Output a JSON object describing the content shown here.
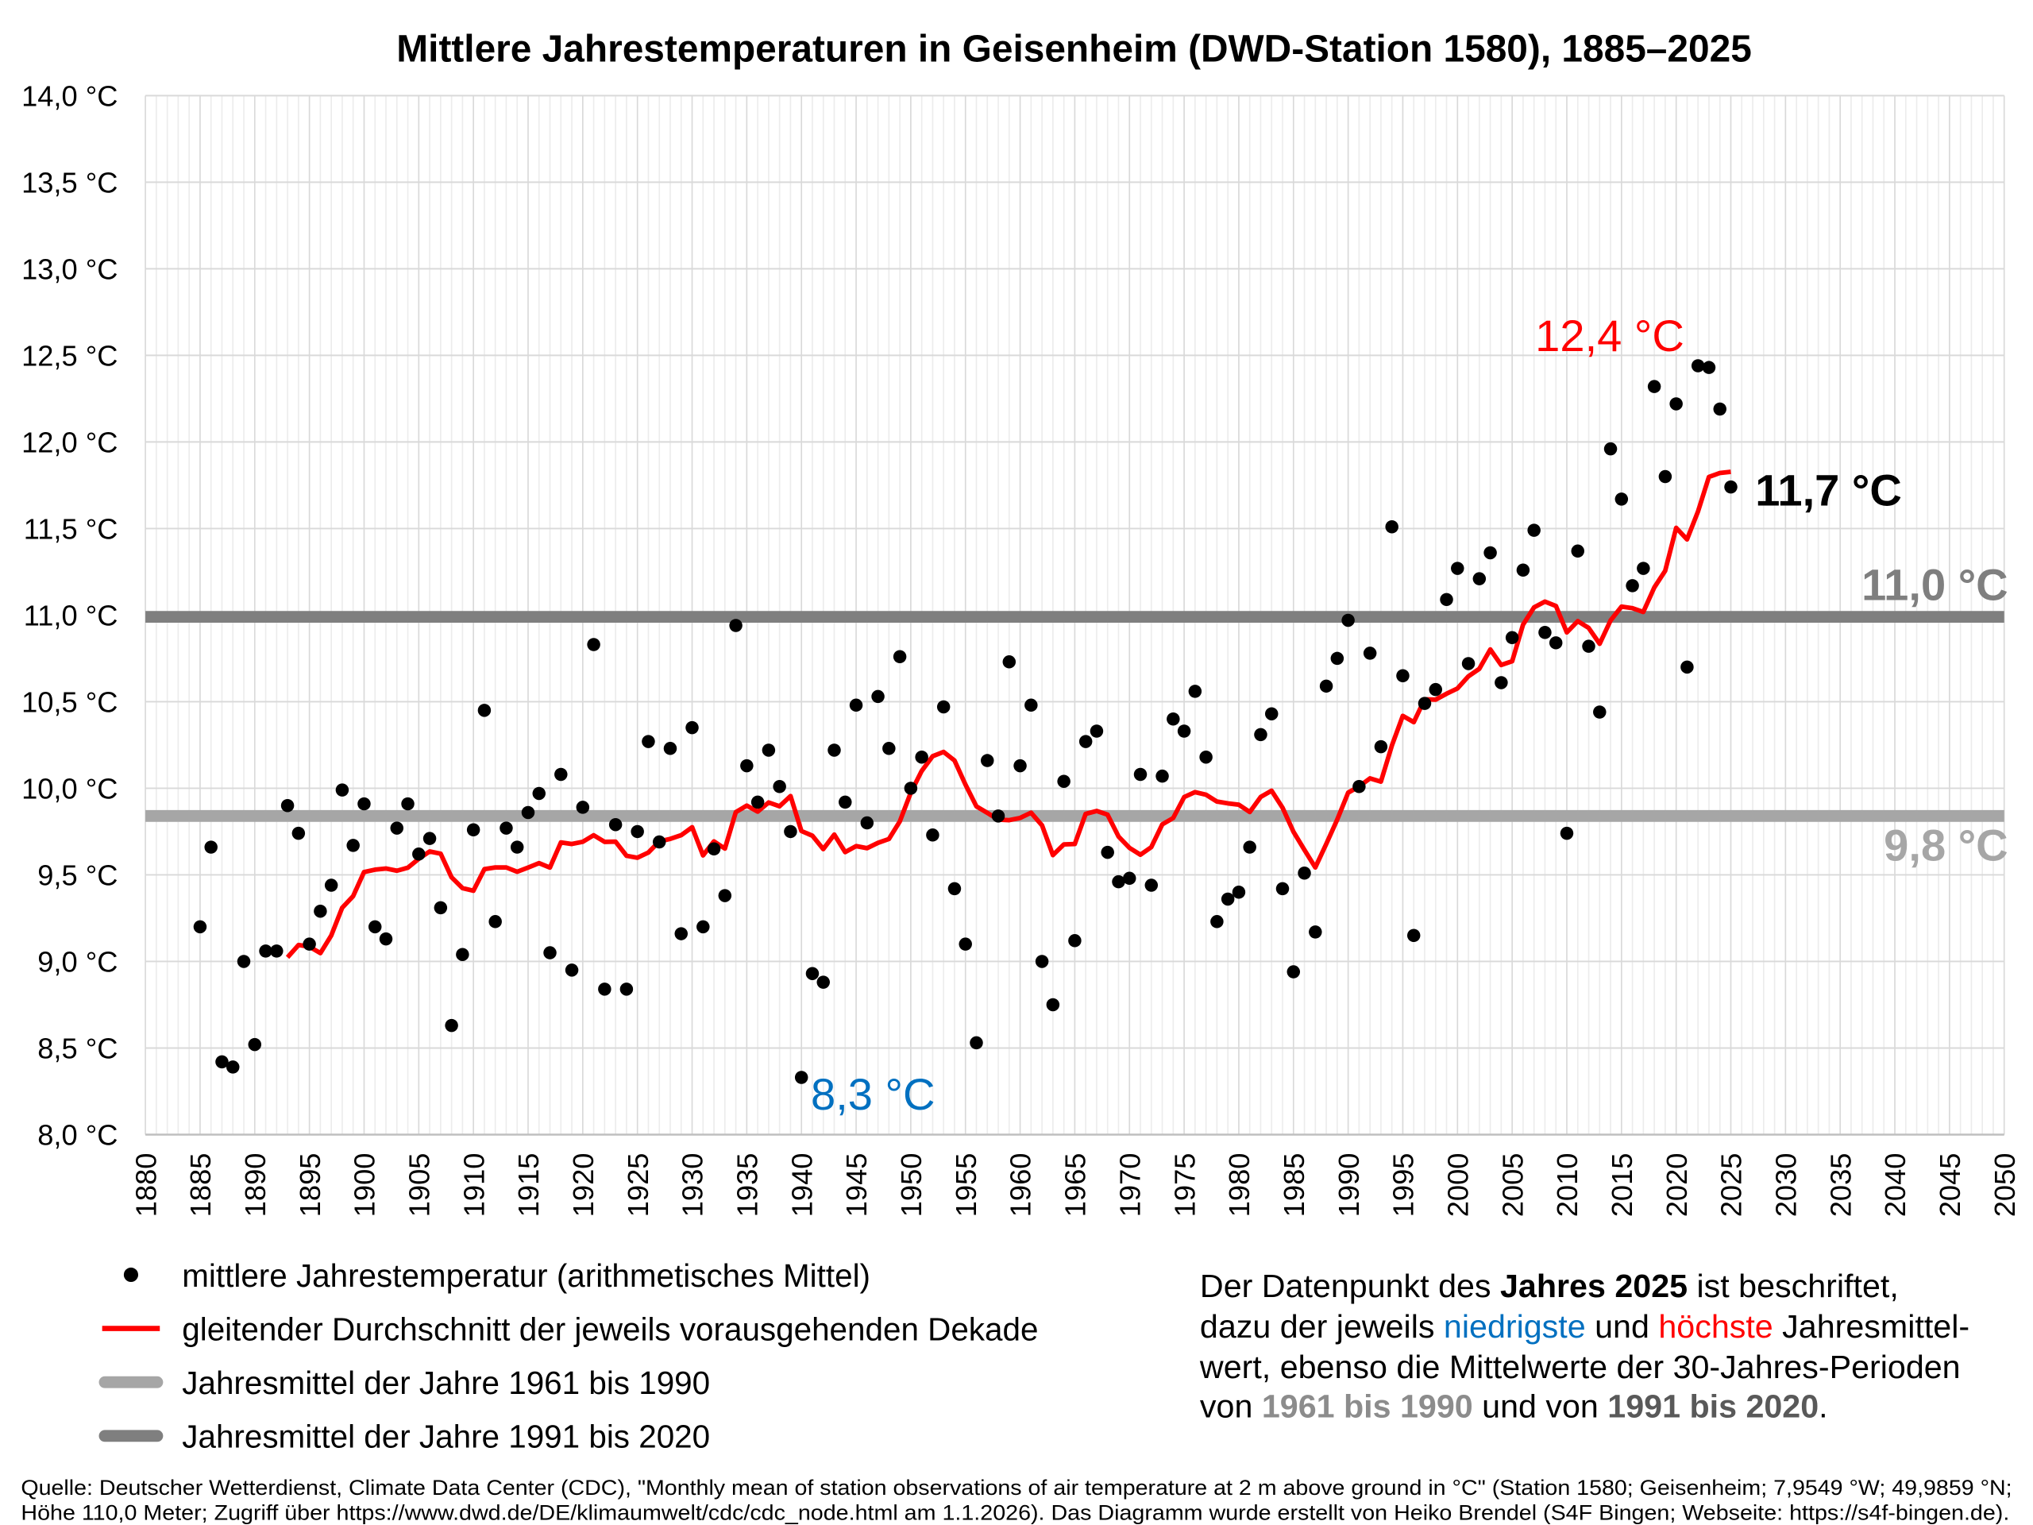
{
  "chart_data": {
    "type": "scatter",
    "title": "Mittlere Jahrestemperaturen in Geisenheim (DWD-Station 1580), 1885–2025",
    "xlim": [
      1880,
      2050
    ],
    "ylim": [
      8.0,
      14.0
    ],
    "x_ticks": [
      "1880",
      "1885",
      "1890",
      "1895",
      "1900",
      "1905",
      "1910",
      "1915",
      "1920",
      "1925",
      "1930",
      "1935",
      "1940",
      "1945",
      "1950",
      "1955",
      "1960",
      "1965",
      "1970",
      "1975",
      "1980",
      "1985",
      "1990",
      "1995",
      "2000",
      "2005",
      "2010",
      "2015",
      "2020",
      "2025",
      "2030",
      "2035",
      "2040",
      "2045",
      "2050"
    ],
    "y_ticks": [
      "8,0 °C",
      "8,5 °C",
      "9,0 °C",
      "9,5 °C",
      "10,0 °C",
      "10,5 °C",
      "11,0 °C",
      "11,5 °C",
      "12,0 °C",
      "12,5 °C",
      "13,0 °C",
      "13,5 °C",
      "14,0 °C"
    ],
    "grid": true,
    "series": [
      {
        "name": "mittlere Jahrestemperatur (arithmetisches Mittel)",
        "kind": "scatter",
        "color": "#000000",
        "start_year": 1885,
        "values": [
          9.2,
          9.66,
          8.42,
          8.39,
          9.0,
          8.52,
          9.06,
          9.06,
          9.9,
          9.74,
          9.1,
          9.29,
          9.44,
          9.99,
          9.67,
          9.91,
          9.2,
          9.13,
          9.77,
          9.91,
          9.62,
          9.71,
          9.31,
          8.63,
          9.04,
          9.76,
          10.45,
          9.23,
          9.77,
          9.66,
          9.86,
          9.97,
          9.05,
          10.08,
          8.95,
          9.89,
          10.83,
          8.84,
          9.79,
          8.84,
          9.75,
          10.27,
          9.69,
          10.23,
          9.16,
          10.35,
          9.2,
          9.65,
          9.38,
          10.94,
          10.13,
          9.92,
          10.22,
          10.01,
          9.75,
          8.33,
          8.93,
          8.88,
          10.22,
          9.92,
          10.48,
          9.8,
          10.53,
          10.23,
          10.76,
          10.0,
          10.18,
          9.73,
          10.47,
          9.42,
          9.1,
          8.53,
          10.16,
          9.84,
          10.73,
          10.13,
          10.48,
          9.0,
          8.75,
          10.04,
          9.12,
          10.27,
          10.33,
          9.63,
          9.46,
          9.48,
          10.08,
          9.44,
          10.07,
          10.4,
          10.33,
          10.56,
          10.18,
          9.23,
          9.36,
          9.4,
          9.66,
          10.31,
          10.43,
          9.42,
          8.94,
          9.51,
          9.17,
          10.59,
          10.75,
          10.97,
          10.01,
          10.78,
          10.24,
          11.51,
          10.65,
          9.15,
          10.49,
          10.57,
          11.09,
          11.27,
          10.72,
          11.21,
          11.36,
          10.61,
          10.87,
          11.26,
          11.49,
          10.9,
          10.84,
          9.74,
          11.37,
          10.82,
          10.44,
          11.96,
          11.67,
          11.17,
          11.27,
          12.32,
          11.8,
          12.22,
          10.7,
          12.44,
          12.43,
          12.19,
          11.74
        ]
      },
      {
        "name": "gleitender Durchschnitt der jeweils vorausgehenden Dekade",
        "kind": "line",
        "color": "#ff0000",
        "window_years": 10,
        "start_year": 1893
      },
      {
        "name": "Jahresmittel der Jahre 1961 bis 1990",
        "kind": "hline",
        "color": "#a6a6a6",
        "value": 9.84,
        "label": "9,8 °C"
      },
      {
        "name": "Jahresmittel der Jahre 1991 bis 2020",
        "kind": "hline",
        "color": "#7f7f7f",
        "value": 10.99,
        "label": "11,0 °C"
      }
    ],
    "annotations": {
      "max": {
        "text": "12,4 °C",
        "color": "#ff0000"
      },
      "min": {
        "text": "8,3 °C",
        "color": "#0070c0"
      },
      "last": {
        "text": "11,7 °C",
        "color": "#000000"
      }
    },
    "legend_position": "bottom-left"
  },
  "note": {
    "l1a": "Der Datenpunkt des ",
    "l1b": "Jahres 2025",
    "l1c": " ist beschriftet,",
    "l2a": "dazu der jeweils ",
    "l2b": "niedrigste",
    "l2c": " und ",
    "l2d": "höchste",
    "l2e": " Jahresmittel-",
    "l3": "wert, ebenso die Mittelwerte der 30-Jahres-Perioden",
    "l4a": "von ",
    "l4b": "1961 bis 1990",
    "l4c": " und von ",
    "l4d": "1991 bis 2020",
    "l4e": "."
  },
  "source": {
    "line1": "Quelle: Deutscher Wetterdienst, Climate Data Center (CDC), \"Monthly mean of station observations of air temperature at 2 m above ground in °C\" (Station 1580; Geisenheim; 7,9549 °W; 49,9859 °N;",
    "line2": "Höhe 110,0 Meter; Zugriff über https://www.dwd.de/DE/klimaumwelt/cdc/cdc_node.html am 1.1.2026). Das Diagramm wurde erstellt von Heiko Brendel (S4F Bingen; Webseite: https://s4f-bingen.de)."
  }
}
